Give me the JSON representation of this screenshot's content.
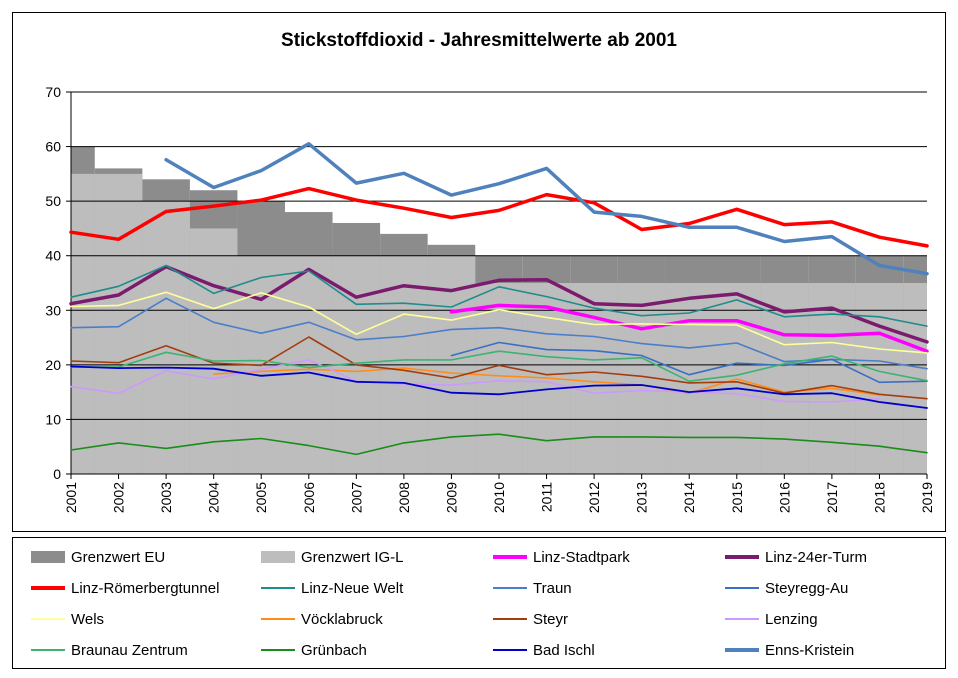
{
  "chart_data": {
    "type": "line",
    "title": "Stickstoffdioxid - Jahresmittelwerte ab 2001",
    "xlabel": "",
    "ylabel": "",
    "ylim": [
      0,
      70
    ],
    "yticks": [
      0,
      10,
      20,
      30,
      40,
      50,
      60,
      70
    ],
    "grid": true,
    "legend_position": "bottom",
    "x": [
      2001,
      2002,
      2003,
      2004,
      2005,
      2006,
      2007,
      2008,
      2009,
      2010,
      2011,
      2012,
      2013,
      2014,
      2015,
      2016,
      2017,
      2018,
      2019
    ],
    "limits": [
      {
        "name": "Grenzwert EU",
        "color": "#8c8c8c",
        "steps": [
          [
            2001,
            60
          ],
          [
            2002,
            56
          ],
          [
            2003,
            54
          ],
          [
            2004,
            52
          ],
          [
            2005,
            50
          ],
          [
            2006,
            48
          ],
          [
            2007,
            46
          ],
          [
            2008,
            44
          ],
          [
            2009,
            42
          ],
          [
            2010,
            40
          ],
          [
            2011,
            40
          ],
          [
            2012,
            40
          ],
          [
            2013,
            40
          ],
          [
            2014,
            40
          ],
          [
            2015,
            40
          ],
          [
            2016,
            40
          ],
          [
            2017,
            40
          ],
          [
            2018,
            40
          ],
          [
            2019,
            40
          ]
        ]
      },
      {
        "name": "Grenzwert IG-L",
        "color": "#bdbdbd",
        "steps": [
          [
            2001,
            55
          ],
          [
            2002,
            55
          ],
          [
            2003,
            50
          ],
          [
            2004,
            45
          ],
          [
            2005,
            40
          ],
          [
            2006,
            40
          ],
          [
            2007,
            40
          ],
          [
            2008,
            40
          ],
          [
            2009,
            40
          ],
          [
            2010,
            35
          ],
          [
            2011,
            35
          ],
          [
            2012,
            35
          ],
          [
            2013,
            35
          ],
          [
            2014,
            35
          ],
          [
            2015,
            35
          ],
          [
            2016,
            35
          ],
          [
            2017,
            35
          ],
          [
            2018,
            35
          ],
          [
            2019,
            35
          ]
        ]
      }
    ],
    "series": [
      {
        "name": "Linz-Stadtpark",
        "color": "#ff00ff",
        "width": 3.5,
        "values": [
          null,
          null,
          null,
          null,
          null,
          null,
          null,
          null,
          29.7,
          30.9,
          30.6,
          28.7,
          26.6,
          28.1,
          28.1,
          25.5,
          25.4,
          25.8,
          22.5
        ]
      },
      {
        "name": "Linz-24er-Turm",
        "color": "#7b1b6e",
        "width": 3.5,
        "values": [
          31.2,
          32.8,
          38.0,
          34.5,
          32.0,
          37.5,
          32.4,
          34.5,
          33.6,
          35.5,
          35.6,
          31.2,
          30.9,
          32.2,
          33.0,
          29.7,
          30.4,
          27.1,
          24.2
        ]
      },
      {
        "name": "Linz-Römerbergtunnel",
        "color": "#ff0000",
        "width": 3.5,
        "values": [
          44.3,
          43.0,
          48.1,
          49.1,
          50.2,
          52.3,
          50.2,
          48.7,
          47.0,
          48.3,
          51.2,
          49.7,
          44.8,
          45.9,
          48.5,
          45.7,
          46.2,
          43.4,
          41.8
        ]
      },
      {
        "name": "Linz-Neue Welt",
        "color": "#1f8c8c",
        "width": 1.6,
        "values": [
          32.4,
          34.4,
          38.2,
          33.1,
          36.0,
          37.2,
          31.1,
          31.3,
          30.6,
          34.3,
          32.5,
          30.4,
          29.0,
          29.5,
          31.9,
          28.8,
          29.3,
          28.8,
          27.1
        ]
      },
      {
        "name": "Traun",
        "color": "#4a7ec9",
        "width": 1.6,
        "values": [
          26.8,
          27.0,
          32.2,
          27.8,
          25.8,
          27.8,
          24.6,
          25.2,
          26.5,
          26.8,
          25.7,
          25.2,
          23.9,
          23.1,
          24.0,
          20.6,
          21.0,
          20.7,
          19.3
        ]
      },
      {
        "name": "Steyregg-Au",
        "color": "#3a6fc4",
        "width": 1.6,
        "values": [
          null,
          null,
          null,
          null,
          null,
          null,
          null,
          null,
          21.7,
          24.1,
          22.8,
          22.6,
          21.7,
          18.2,
          20.3,
          19.9,
          21.0,
          16.8,
          17.0
        ]
      },
      {
        "name": "Wels",
        "color": "#ffff99",
        "width": 1.6,
        "values": [
          30.7,
          30.9,
          33.3,
          30.3,
          33.2,
          30.6,
          25.6,
          29.3,
          28.2,
          30.1,
          28.7,
          27.4,
          27.5,
          27.4,
          27.3,
          23.7,
          24.1,
          22.9,
          22.2
        ]
      },
      {
        "name": "Vöcklabruck",
        "color": "#ff8c1a",
        "width": 1.6,
        "values": [
          null,
          null,
          null,
          18.3,
          18.8,
          19.2,
          18.8,
          19.4,
          18.5,
          18.0,
          17.6,
          16.9,
          16.3,
          14.8,
          17.4,
          15.0,
          15.7,
          14.5,
          null
        ]
      },
      {
        "name": "Steyr",
        "color": "#a33d0f",
        "width": 1.6,
        "values": [
          20.7,
          20.4,
          23.5,
          20.3,
          19.9,
          25.1,
          20.0,
          19.0,
          17.6,
          19.9,
          18.2,
          18.7,
          17.9,
          16.7,
          16.9,
          14.8,
          16.2,
          14.6,
          13.8
        ]
      },
      {
        "name": "Lenzing",
        "color": "#cc99ff",
        "width": 1.6,
        "values": [
          16.0,
          14.8,
          18.9,
          17.4,
          19.2,
          20.9,
          17.0,
          16.5,
          16.3,
          17.1,
          16.9,
          14.8,
          15.3,
          15.0,
          14.7,
          13.3,
          13.2,
          13.8,
          null
        ]
      },
      {
        "name": "Braunau Zentrum",
        "color": "#3cb371",
        "width": 1.6,
        "values": [
          19.6,
          19.6,
          22.3,
          20.7,
          20.8,
          19.5,
          20.3,
          20.9,
          20.9,
          22.5,
          21.5,
          20.9,
          21.3,
          17.0,
          18.1,
          20.2,
          21.6,
          18.8,
          17.1
        ]
      },
      {
        "name": "Grünbach",
        "color": "#1a8c1a",
        "width": 1.6,
        "values": [
          4.4,
          5.7,
          4.7,
          5.9,
          6.5,
          5.2,
          3.6,
          5.7,
          6.8,
          7.3,
          6.1,
          6.8,
          6.8,
          6.7,
          6.7,
          6.4,
          5.8,
          5.1,
          3.9
        ]
      },
      {
        "name": "Bad Ischl",
        "color": "#0000cc",
        "width": 1.8,
        "values": [
          19.7,
          19.4,
          19.5,
          19.3,
          18.0,
          18.6,
          16.9,
          16.7,
          14.9,
          14.6,
          15.5,
          16.2,
          16.3,
          15.0,
          15.7,
          14.6,
          14.8,
          13.2,
          12.1
        ]
      },
      {
        "name": "Enns-Kristein",
        "color": "#4f81bd",
        "width": 3.5,
        "values": [
          null,
          null,
          57.6,
          52.5,
          55.6,
          60.5,
          53.3,
          55.1,
          51.1,
          53.2,
          56.0,
          48.0,
          47.2,
          45.2,
          45.2,
          42.6,
          43.5,
          38.2,
          36.7
        ]
      }
    ]
  },
  "legend": {
    "items": [
      {
        "label": "Grenzwert EU",
        "color": "#8c8c8c",
        "kind": "box"
      },
      {
        "label": "Grenzwert IG-L",
        "color": "#bdbdbd",
        "kind": "box"
      },
      {
        "label": "Linz-Stadtpark",
        "color": "#ff00ff",
        "kind": "line",
        "width": 3.5
      },
      {
        "label": "Linz-24er-Turm",
        "color": "#7b1b6e",
        "kind": "line",
        "width": 3.5
      },
      {
        "label": "Linz-Römerbergtunnel",
        "color": "#ff0000",
        "kind": "line",
        "width": 3.5
      },
      {
        "label": "Linz-Neue Welt",
        "color": "#1f8c8c",
        "kind": "line",
        "width": 1.6
      },
      {
        "label": "Traun",
        "color": "#4a7ec9",
        "kind": "line",
        "width": 1.6
      },
      {
        "label": "Steyregg-Au",
        "color": "#3a6fc4",
        "kind": "line",
        "width": 1.6
      },
      {
        "label": "Wels",
        "color": "#ffff99",
        "kind": "line",
        "width": 1.6
      },
      {
        "label": "Vöcklabruck",
        "color": "#ff8c1a",
        "kind": "line",
        "width": 1.6
      },
      {
        "label": "Steyr",
        "color": "#a33d0f",
        "kind": "line",
        "width": 1.6
      },
      {
        "label": "Lenzing",
        "color": "#cc99ff",
        "kind": "line",
        "width": 1.6
      },
      {
        "label": "Braunau Zentrum",
        "color": "#3cb371",
        "kind": "line",
        "width": 1.6
      },
      {
        "label": "Grünbach",
        "color": "#1a8c1a",
        "kind": "line",
        "width": 1.6
      },
      {
        "label": "Bad Ischl",
        "color": "#0000cc",
        "kind": "line",
        "width": 1.8
      },
      {
        "label": "Enns-Kristein",
        "color": "#4f81bd",
        "kind": "line",
        "width": 3.5
      }
    ]
  }
}
